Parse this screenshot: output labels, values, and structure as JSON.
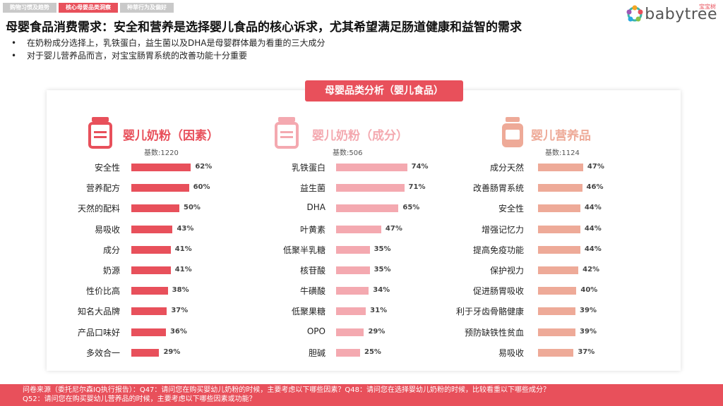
{
  "tabs": [
    {
      "label": "购物习惯及趋势",
      "active": false
    },
    {
      "label": "核心母婴品类洞察",
      "active": true
    },
    {
      "label": "种草行为及偏好",
      "active": false
    }
  ],
  "logo": {
    "text": "babytree",
    "sub": "宝宝树"
  },
  "title": "母婴食品消费需求：安全和营养是选择婴儿食品的核心诉求，尤其希望满足肠道健康和益智的需求",
  "bullets": [
    "在奶粉成分选择上，乳铁蛋白，益生菌以及DHA是母婴群体最为看重的三大成分",
    "对于婴儿营养品而言，对宝宝肠胃系统的改善功能十分重要"
  ],
  "panel_title": "母婴品类分析（婴儿食品）",
  "chart_data": [
    {
      "type": "bar",
      "title": "婴儿奶粉（因素）",
      "base": "基数:1220",
      "color": "#e8505b",
      "icon": "milk-can-icon",
      "categories": [
        "安全性",
        "营养配方",
        "天然的配料",
        "易吸收",
        "成分",
        "奶源",
        "性价比高",
        "知名大品牌",
        "产品口味好",
        "多效合一"
      ],
      "values": [
        62,
        60,
        50,
        43,
        41,
        41,
        38,
        37,
        36,
        29
      ],
      "value_labels": [
        "62%",
        "60%",
        "50%",
        "43%",
        "41%",
        "41%",
        "38%",
        "37%",
        "36%",
        "29%"
      ]
    },
    {
      "type": "bar",
      "title": "婴儿奶粉（成分）",
      "base": "基数:506",
      "color": "#f4a9b0",
      "icon": "milk-can-icon",
      "categories": [
        "乳铁蛋白",
        "益生菌",
        "DHA",
        "叶黄素",
        "低聚半乳糖",
        "核苷酸",
        "牛磺酸",
        "低聚果糖",
        "OPO",
        "胆碱"
      ],
      "values": [
        74,
        71,
        65,
        47,
        35,
        35,
        34,
        31,
        29,
        25
      ],
      "value_labels": [
        "74%",
        "71%",
        "65%",
        "47%",
        "35%",
        "35%",
        "34%",
        "31%",
        "29%",
        "25%"
      ]
    },
    {
      "type": "bar",
      "title": "婴儿营养品",
      "base": "基数:1124",
      "color": "#eeaa98",
      "icon": "supplement-jar-icon",
      "categories": [
        "成分天然",
        "改善肠胃系统",
        "安全性",
        "增强记忆力",
        "提高免疫功能",
        "保护视力",
        "促进肠胃吸收",
        "利于牙齿骨骼健康",
        "预防缺铁性贫血",
        "易吸收"
      ],
      "values": [
        47,
        46,
        44,
        44,
        44,
        42,
        40,
        39,
        39,
        37
      ],
      "value_labels": [
        "47%",
        "46%",
        "44%",
        "44%",
        "44%",
        "42%",
        "40%",
        "39%",
        "39%",
        "37%"
      ]
    }
  ],
  "footer": {
    "line1": "问卷来源（委托尼尔森IQ执行报告）：Q47：请问您在购买婴幼儿奶粉的时候，主要考虑以下哪些因素？Q48：请问您在选择婴幼儿奶粉的时候，比较看重以下哪些成分？",
    "line2": "Q52：请问您在购买婴幼儿营养品的时候，主要考虑以下哪些因素或功能？"
  }
}
